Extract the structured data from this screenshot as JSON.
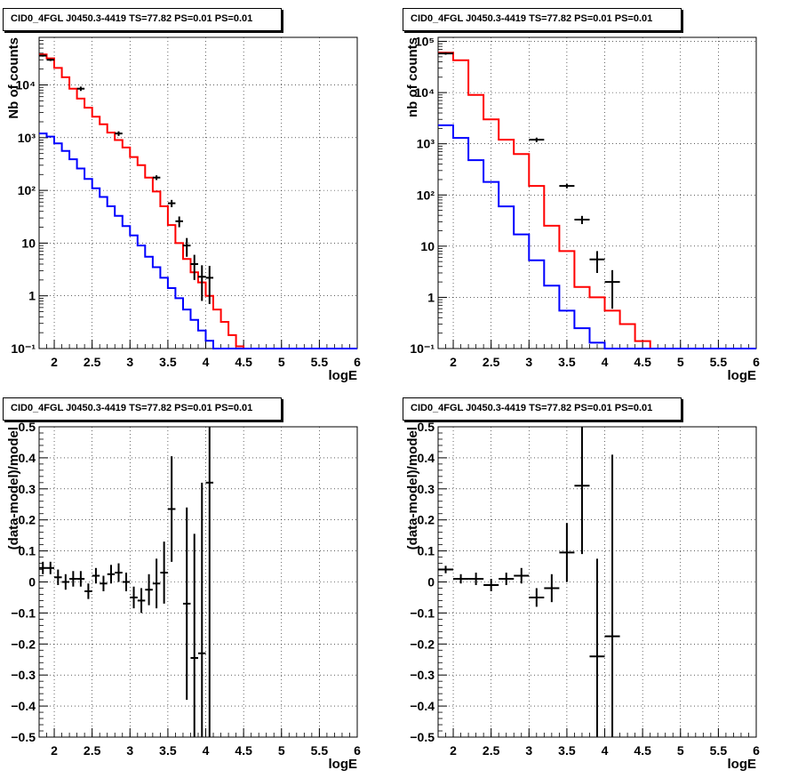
{
  "charts": [
    {
      "title": "CID0_4FGL J0450.3-4419 TS=77.82 PS=0.01 PS=0.01",
      "ylabel": "Nb of counts",
      "xlabel": "logE",
      "y_tick_labels": [
        "10⁻¹",
        "1",
        "10",
        "10²",
        "10³",
        "10⁴"
      ]
    },
    {
      "title": "CID0_4FGL J0450.3-4419 TS=77.82 PS=0.01 PS=0.01",
      "ylabel": "nb of counts",
      "xlabel": "logE",
      "y_tick_labels": [
        "10⁻¹",
        "1",
        "10",
        "10²",
        "10³",
        "10⁴",
        "10⁵"
      ]
    },
    {
      "title": "CID0_4FGL J0450.3-4419 TS=77.82 PS=0.01 PS=0.01",
      "ylabel": "(data-model)/model",
      "xlabel": "logE"
    },
    {
      "title": "CID0_4FGL J0450.3-4419 TS=77.82 PS=0.01 PS=0.01",
      "ylabel": "(data-model)/model",
      "xlabel": "logE"
    }
  ],
  "x_tick_labels": [
    "2",
    "2.5",
    "3",
    "3.5",
    "4",
    "4.5",
    "5",
    "5.5",
    "6"
  ],
  "resid_tick_labels": [
    "−0.5",
    "−0.4",
    "−0.3",
    "−0.2",
    "−0.1",
    "0",
    "0.1",
    "0.2",
    "0.3",
    "0.4",
    "0.5"
  ],
  "colors": {
    "model_total": "#ff0000",
    "model_source": "#0000ff",
    "data": "#000000"
  },
  "chart_data": [
    {
      "type": "line",
      "scale": "log",
      "xlim": [
        1.8,
        6.0
      ],
      "ylim": [
        0.1,
        80000
      ],
      "bin_width": 0.1,
      "bin_edges_start": 1.8,
      "series": [
        {
          "name": "",
          "color": "#ff0000",
          "values": [
            38000,
            32000,
            21000,
            14000,
            8500,
            5500,
            3700,
            2500,
            1800,
            1250,
            900,
            650,
            430,
            300,
            175,
            95,
            50,
            22,
            10,
            5,
            2.8,
            1.8,
            1.0,
            0.55,
            0.32,
            0.18,
            0.11,
            0.1,
            0.1,
            0.1,
            0.1,
            0.1,
            0.1,
            0.1,
            0.1,
            0.1,
            0.1,
            0.1,
            0.1,
            0.1,
            0.1,
            0.1
          ]
        },
        {
          "name": "",
          "color": "#0000ff",
          "values": [
            1200,
            1050,
            780,
            560,
            390,
            260,
            165,
            110,
            75,
            50,
            33,
            21,
            14,
            9,
            5.5,
            3.5,
            2.2,
            1.4,
            0.9,
            0.55,
            0.35,
            0.22,
            0.14,
            0.1,
            0.1,
            0.1,
            0.1,
            0.1,
            0.1,
            0.1,
            0.1,
            0.1,
            0.1,
            0.1,
            0.1,
            0.1,
            0.1,
            0.1,
            0.1,
            0.1,
            0.1,
            0.1
          ]
        }
      ],
      "points": [
        {
          "x": 1.85,
          "y": 36000,
          "err": 1500
        },
        {
          "x": 1.95,
          "y": 30000,
          "err": 1500
        },
        {
          "x": 2.35,
          "y": 8500,
          "err": 800
        },
        {
          "x": 2.85,
          "y": 1200,
          "err": 120
        },
        {
          "x": 3.35,
          "y": 175,
          "err": 18
        },
        {
          "x": 3.55,
          "y": 57,
          "err": 9
        },
        {
          "x": 3.65,
          "y": 26,
          "err": 6
        },
        {
          "x": 3.75,
          "y": 9,
          "err": 3.5
        },
        {
          "x": 3.85,
          "y": 4,
          "err": 2
        },
        {
          "x": 3.95,
          "y": 2.3,
          "err": 1.5
        },
        {
          "x": 4.05,
          "y": 2.2,
          "err": 1.5
        }
      ]
    },
    {
      "type": "line",
      "scale": "log",
      "xlim": [
        1.8,
        6.0
      ],
      "ylim": [
        0.1,
        120000
      ],
      "bin_width": 0.2,
      "bin_edges_start": 1.8,
      "series": [
        {
          "name": "",
          "color": "#ff0000",
          "values": [
            60000,
            43000,
            9000,
            3000,
            1200,
            630,
            150,
            25,
            8,
            1.6,
            1.0,
            0.55,
            0.3,
            0.14,
            0.1,
            0.1,
            0.1,
            0.1,
            0.1,
            0.1,
            0.1
          ]
        },
        {
          "name": "",
          "color": "#0000ff",
          "values": [
            2300,
            1300,
            480,
            180,
            60,
            17,
            5.3,
            1.7,
            0.55,
            0.25,
            0.13,
            0.1,
            0.1,
            0.1,
            0.1,
            0.1,
            0.1,
            0.1,
            0.1,
            0.1,
            0.1
          ]
        }
      ],
      "points": [
        {
          "x": 1.9,
          "y": 58000,
          "err": 3000
        },
        {
          "x": 3.1,
          "y": 1200,
          "err": 120
        },
        {
          "x": 3.5,
          "y": 150,
          "err": 15
        },
        {
          "x": 3.7,
          "y": 33,
          "err": 6
        },
        {
          "x": 3.9,
          "y": 5.5,
          "err": 2.5
        },
        {
          "x": 4.1,
          "y": 2,
          "err": 1.4
        }
      ]
    },
    {
      "type": "scatter",
      "xlim": [
        1.8,
        6.0
      ],
      "ylim": [
        -0.5,
        0.5
      ],
      "points": [
        {
          "x": 1.85,
          "y": 0.045,
          "ex": 0.05,
          "ey": 0.02
        },
        {
          "x": 1.95,
          "y": 0.045,
          "ex": 0.05,
          "ey": 0.02
        },
        {
          "x": 2.05,
          "y": 0.015,
          "ex": 0.05,
          "ey": 0.025
        },
        {
          "x": 2.15,
          "y": 0.0,
          "ex": 0.05,
          "ey": 0.025
        },
        {
          "x": 2.25,
          "y": 0.01,
          "ex": 0.05,
          "ey": 0.025
        },
        {
          "x": 2.35,
          "y": 0.01,
          "ex": 0.05,
          "ey": 0.025
        },
        {
          "x": 2.45,
          "y": -0.03,
          "ex": 0.05,
          "ey": 0.025
        },
        {
          "x": 2.55,
          "y": 0.02,
          "ex": 0.05,
          "ey": 0.025
        },
        {
          "x": 2.65,
          "y": -0.005,
          "ex": 0.05,
          "ey": 0.025
        },
        {
          "x": 2.75,
          "y": 0.025,
          "ex": 0.05,
          "ey": 0.03
        },
        {
          "x": 2.85,
          "y": 0.03,
          "ex": 0.05,
          "ey": 0.03
        },
        {
          "x": 2.95,
          "y": 0.0,
          "ex": 0.05,
          "ey": 0.03
        },
        {
          "x": 3.05,
          "y": -0.05,
          "ex": 0.05,
          "ey": 0.035
        },
        {
          "x": 3.15,
          "y": -0.06,
          "ex": 0.05,
          "ey": 0.04
        },
        {
          "x": 3.25,
          "y": -0.025,
          "ex": 0.05,
          "ey": 0.05
        },
        {
          "x": 3.35,
          "y": -0.005,
          "ex": 0.05,
          "ey": 0.08
        },
        {
          "x": 3.45,
          "y": 0.03,
          "ex": 0.05,
          "ey": 0.1
        },
        {
          "x": 3.55,
          "y": 0.235,
          "ex": 0.05,
          "ey": 0.17
        },
        {
          "x": 3.75,
          "y": -0.07,
          "ex": 0.05,
          "ey": 0.31
        },
        {
          "x": 3.85,
          "y": -0.245,
          "ex": 0.05,
          "ey": 0.4
        },
        {
          "x": 3.95,
          "y": -0.23,
          "ex": 0.05,
          "ey": 0.55
        },
        {
          "x": 4.05,
          "y": 0.32,
          "ex": 0.05,
          "ey": 0.9
        }
      ]
    },
    {
      "type": "scatter",
      "xlim": [
        1.8,
        6.0
      ],
      "ylim": [
        -0.5,
        0.5
      ],
      "points": [
        {
          "x": 1.9,
          "y": 0.04,
          "ex": 0.1,
          "ey": 0.012
        },
        {
          "x": 2.1,
          "y": 0.01,
          "ex": 0.1,
          "ey": 0.015
        },
        {
          "x": 2.3,
          "y": 0.01,
          "ex": 0.1,
          "ey": 0.02
        },
        {
          "x": 2.5,
          "y": -0.01,
          "ex": 0.1,
          "ey": 0.02
        },
        {
          "x": 2.7,
          "y": 0.01,
          "ex": 0.1,
          "ey": 0.02
        },
        {
          "x": 2.9,
          "y": 0.02,
          "ex": 0.1,
          "ey": 0.025
        },
        {
          "x": 3.1,
          "y": -0.05,
          "ex": 0.1,
          "ey": 0.03
        },
        {
          "x": 3.3,
          "y": -0.02,
          "ex": 0.1,
          "ey": 0.045
        },
        {
          "x": 3.5,
          "y": 0.095,
          "ex": 0.1,
          "ey": 0.095
        },
        {
          "x": 3.7,
          "y": 0.31,
          "ex": 0.1,
          "ey": 0.22
        },
        {
          "x": 3.9,
          "y": -0.24,
          "ex": 0.1,
          "ey": 0.315
        },
        {
          "x": 4.1,
          "y": -0.175,
          "ex": 0.1,
          "ey": 0.585
        }
      ]
    }
  ]
}
